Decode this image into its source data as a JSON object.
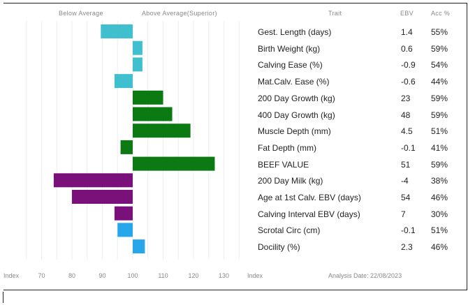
{
  "headers": {
    "below": "Below Average",
    "above": "Above Average(Superior)",
    "trait": "Trait",
    "ebv": "EBV",
    "acc": "Acc %"
  },
  "footer": {
    "index_left": "Index",
    "index_right": "Index",
    "analysis_date": "Analysis Date: 22/08/2023"
  },
  "colors": {
    "cyan": "#40c0cf",
    "green": "#0b7a12",
    "purple": "#7a117a",
    "blue": "#27a7ea"
  },
  "chart_data": {
    "type": "bar",
    "orientation": "horizontal",
    "baseline": 100,
    "xlim": [
      60,
      140
    ],
    "x_ticks": [
      "70",
      "80",
      "90",
      "100",
      "110",
      "120",
      "130"
    ],
    "rows": [
      {
        "trait": "Gest. Length (days)",
        "ebv": "1.4",
        "acc": "55%",
        "index": 89.5,
        "color": "cyan"
      },
      {
        "trait": "Birth Weight (kg)",
        "ebv": "0.6",
        "acc": "59%",
        "index": 103.2,
        "color": "cyan"
      },
      {
        "trait": "Calving Ease (%)",
        "ebv": "-0.9",
        "acc": "54%",
        "index": 103.2,
        "color": "cyan"
      },
      {
        "trait": "Mat.Calv. Ease (%)",
        "ebv": "-0.6",
        "acc": "44%",
        "index": 94.0,
        "color": "cyan"
      },
      {
        "trait": "200 Day Growth (kg)",
        "ebv": "23",
        "acc": "59%",
        "index": 110.0,
        "color": "green"
      },
      {
        "trait": "400 Day Growth (kg)",
        "ebv": "48",
        "acc": "59%",
        "index": 113.0,
        "color": "green"
      },
      {
        "trait": "Muscle Depth (mm)",
        "ebv": "4.5",
        "acc": "51%",
        "index": 119.0,
        "color": "green"
      },
      {
        "trait": "Fat Depth (mm)",
        "ebv": "-0.1",
        "acc": "41%",
        "index": 96.0,
        "color": "green"
      },
      {
        "trait": "BEEF VALUE",
        "ebv": "51",
        "acc": "59%",
        "index": 127.0,
        "color": "green"
      },
      {
        "trait": "200 Day Milk (kg)",
        "ebv": "-4",
        "acc": "38%",
        "index": 74.0,
        "color": "purple"
      },
      {
        "trait": "Age at 1st Calv. EBV (days)",
        "ebv": "54",
        "acc": "46%",
        "index": 80.0,
        "color": "purple"
      },
      {
        "trait": "Calving Interval EBV (days)",
        "ebv": "7",
        "acc": "30%",
        "index": 94.0,
        "color": "purple"
      },
      {
        "trait": "Scrotal Circ (cm)",
        "ebv": "-0.1",
        "acc": "51%",
        "index": 95.0,
        "color": "blue"
      },
      {
        "trait": "Docility (%)",
        "ebv": "2.3",
        "acc": "46%",
        "index": 104.0,
        "color": "blue"
      }
    ]
  }
}
